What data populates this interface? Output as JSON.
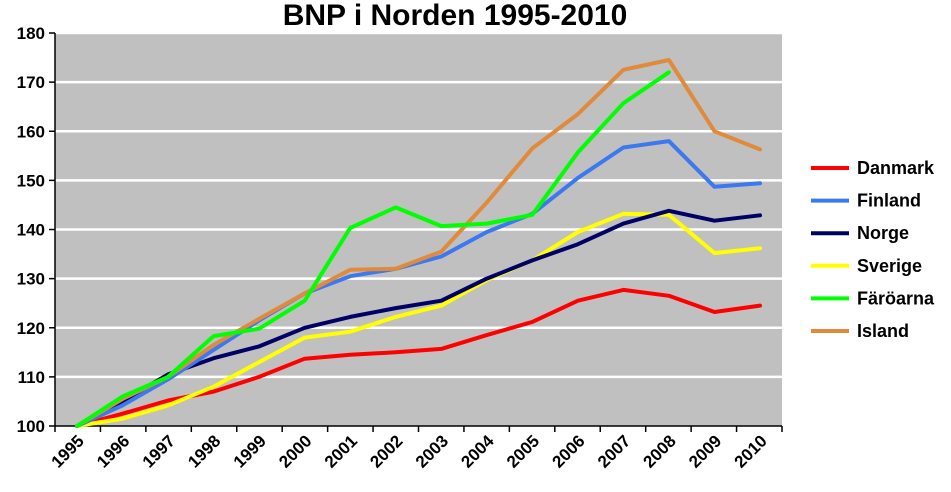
{
  "chart_data": {
    "type": "line",
    "title": "BNP i Norden 1995-2010",
    "xlabel": "",
    "ylabel": "",
    "ylim": [
      100,
      180
    ],
    "yticks": [
      "100",
      "110",
      "120",
      "130",
      "140",
      "150",
      "160",
      "170",
      "180"
    ],
    "categories": [
      "1995",
      "1996",
      "1997",
      "1998",
      "1999",
      "2000",
      "2001",
      "2002",
      "2003",
      "2004",
      "2005",
      "2006",
      "2007",
      "2008",
      "2009",
      "2010"
    ],
    "grid": true,
    "legend_position": "right",
    "plot_background": "#c0c0c0",
    "series": [
      {
        "name": "Danmark",
        "color": "#ff0000",
        "values": [
          100,
          102.5,
          105.2,
          107,
          110,
          113.7,
          114.5,
          115,
          115.7,
          118.5,
          121.2,
          125.5,
          127.7,
          126.5,
          123.2,
          124.5
        ]
      },
      {
        "name": "Finland",
        "color": "#3c78f0",
        "values": [
          100,
          104.2,
          109.5,
          115.5,
          121.5,
          127,
          130.5,
          132,
          134.5,
          139.5,
          143.2,
          150.5,
          156.7,
          158,
          148.7,
          149.4
        ]
      },
      {
        "name": "Norge",
        "color": "#000066",
        "values": [
          100,
          105,
          110.5,
          113.8,
          116.2,
          120,
          122.2,
          124,
          125.5,
          130,
          133.7,
          137,
          141.2,
          143.8,
          141.8,
          142.9
        ]
      },
      {
        "name": "Sverige",
        "color": "#ffff00",
        "values": [
          100,
          101.5,
          104.2,
          108,
          113,
          118,
          119.2,
          122.2,
          124.5,
          129.7,
          133.7,
          139.5,
          143.2,
          143,
          135.2,
          136.2
        ]
      },
      {
        "name": "Färöarna",
        "color": "#00ff00",
        "values": [
          100,
          106,
          110,
          118.3,
          119.8,
          125.5,
          140.3,
          144.5,
          140.7,
          141.2,
          143,
          155.7,
          165.7,
          172,
          null,
          null
        ]
      },
      {
        "name": "Island",
        "color": "#e08a3c",
        "values": [
          100,
          105.5,
          110,
          116.5,
          121.8,
          127,
          131.8,
          132,
          135.5,
          145.5,
          156.5,
          163.5,
          172.5,
          174.5,
          160,
          156.3
        ]
      }
    ]
  }
}
